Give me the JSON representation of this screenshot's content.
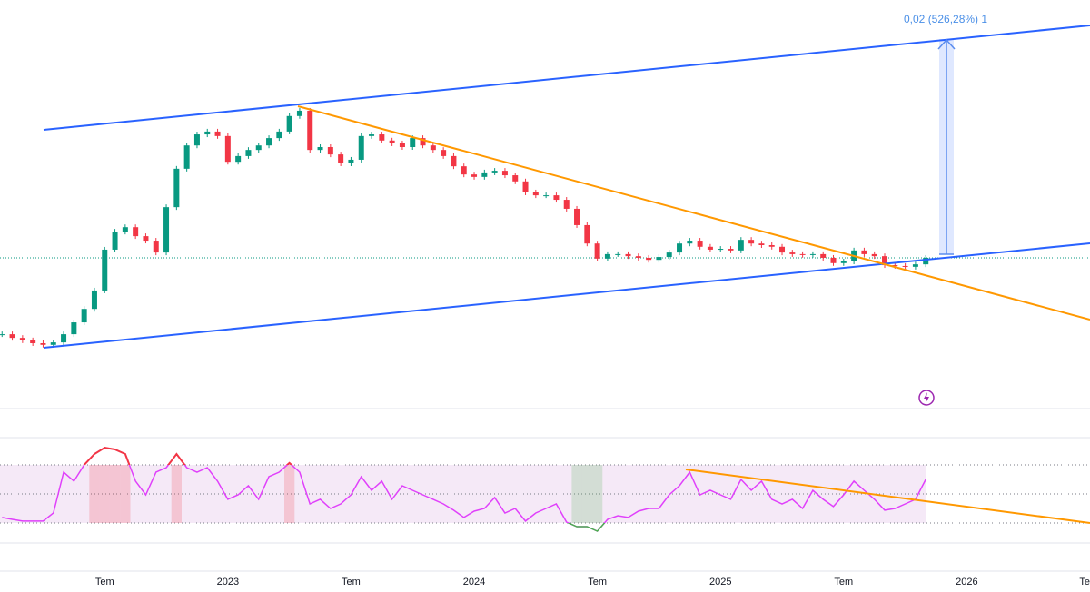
{
  "chart_data": [
    {
      "type": "candlestick",
      "annotation": "0,02 (526,28%) 1",
      "xlim": [
        -11.1,
        42
      ],
      "ylim": [
        0,
        100
      ],
      "xticks": [
        {
          "value": -6,
          "label": "Tem"
        },
        {
          "value": 0,
          "label": "2023"
        },
        {
          "value": 6,
          "label": "Tem"
        },
        {
          "value": 12,
          "label": "2024"
        },
        {
          "value": 18,
          "label": "Tem"
        },
        {
          "value": 24,
          "label": "2025"
        },
        {
          "value": 30,
          "label": "Tem"
        },
        {
          "value": 36,
          "label": "2026"
        },
        {
          "value": 42,
          "label": "Te"
        }
      ],
      "up_color": "#089981",
      "down_color": "#f23645",
      "x": [
        -11,
        -10.5,
        -10,
        -9.5,
        -9,
        -8.5,
        -8,
        -7.5,
        -7,
        -6.5,
        -6,
        -5.5,
        -5,
        -4.5,
        -4,
        -3.5,
        -3,
        -2.5,
        -2,
        -1.5,
        -1,
        -0.5,
        0,
        0.5,
        1,
        1.5,
        2,
        2.5,
        3,
        3.5,
        4,
        4.5,
        5,
        5.5,
        6,
        6.5,
        7,
        7.5,
        8,
        8.5,
        9,
        9.5,
        10,
        10.5,
        11,
        11.5,
        12,
        12.5,
        13,
        13.5,
        14,
        14.5,
        15,
        15.5,
        16,
        16.5,
        17,
        17.5,
        18,
        18.5,
        19,
        19.5,
        20,
        20.5,
        21,
        21.5,
        22,
        22.5,
        23,
        23.5,
        24,
        24.5,
        25,
        25.5,
        26,
        26.5,
        27,
        27.5,
        28,
        28.5,
        29,
        29.5,
        30,
        30.5,
        31,
        31.5,
        32,
        32.5,
        33,
        33.5,
        34
      ],
      "values": [
        18.2,
        17.3,
        16.7,
        16,
        15.6,
        16.2,
        18.2,
        21.1,
        24.4,
        28.9,
        38.9,
        43.3,
        44.4,
        42.2,
        41.1,
        38.2,
        49.3,
        58.7,
        64.4,
        67.1,
        67.8,
        66.7,
        60.4,
        61.8,
        63.3,
        64.4,
        66.2,
        67.8,
        71.6,
        72.9,
        63.3,
        64,
        62.2,
        60,
        60.9,
        66.7,
        67.1,
        65.6,
        64.9,
        64,
        66.2,
        64.4,
        63.3,
        61.8,
        59.3,
        57.3,
        56.7,
        57.8,
        58.2,
        57.1,
        55.6,
        52.9,
        52.2,
        52.2,
        51.1,
        48.9,
        44.9,
        40.4,
        36.7,
        37.8,
        37.8,
        37.3,
        36.9,
        36.4,
        37.1,
        38.2,
        40.4,
        41.1,
        39.6,
        38.9,
        39.1,
        38.7,
        41.3,
        40.4,
        40,
        39.6,
        38.2,
        37.8,
        37.6,
        37.8,
        36.9,
        35.6,
        36,
        38.7,
        37.8,
        37.3,
        35.1,
        34.9,
        34.7,
        35.3,
        36.9
      ]
    },
    {
      "type": "line",
      "xlim": [
        -11.1,
        42
      ],
      "ylim": [
        0,
        100
      ],
      "levels": [
        30,
        50,
        70
      ],
      "color": "#e040fb",
      "overbought_color": "#f23645",
      "oversold_color": "#4caf50",
      "x": [
        -11,
        -10.5,
        -10,
        -9.5,
        -9,
        -8.5,
        -8,
        -7.5,
        -7,
        -6.5,
        -6,
        -5.5,
        -5,
        -4.5,
        -4,
        -3.5,
        -3,
        -2.5,
        -2,
        -1.5,
        -1,
        -0.5,
        0,
        0.5,
        1,
        1.5,
        2,
        2.5,
        3,
        3.5,
        4,
        4.5,
        5,
        5.5,
        6,
        6.5,
        7,
        7.5,
        8,
        8.5,
        9,
        9.5,
        10,
        10.5,
        11,
        11.5,
        12,
        12.5,
        13,
        13.5,
        14,
        14.5,
        15,
        15.5,
        16,
        16.5,
        17,
        17.5,
        18,
        18.5,
        19,
        19.5,
        20,
        20.5,
        21,
        21.5,
        22,
        22.5,
        23,
        23.5,
        24,
        24.5,
        25,
        25.5,
        26,
        26.5,
        27,
        27.5,
        28,
        28.5,
        29,
        29.5,
        30,
        30.5,
        31,
        31.5,
        32,
        32.5,
        33,
        33.5,
        34
      ],
      "values": [
        33.8,
        32.5,
        31.3,
        31.3,
        31.3,
        36.9,
        65,
        58.8,
        70,
        77.5,
        81.9,
        80.6,
        77.5,
        58.8,
        49.4,
        65,
        68.1,
        77.5,
        68.1,
        65,
        68.1,
        58.8,
        46.3,
        49.4,
        55.6,
        46.3,
        61.9,
        65,
        71.3,
        65,
        43.1,
        46.3,
        40,
        43.1,
        49.4,
        61.9,
        52.5,
        58.8,
        46.3,
        55.6,
        52.5,
        49.4,
        46.3,
        43.1,
        38.8,
        33.8,
        38.1,
        40,
        47.5,
        36.9,
        40,
        31.3,
        36.9,
        40,
        43.1,
        30.6,
        27.5,
        27.5,
        24.4,
        32.5,
        35,
        33.8,
        38.1,
        40,
        40,
        49.4,
        55.6,
        65,
        49.4,
        52.5,
        49.4,
        46.3,
        60,
        52.5,
        58.8,
        46.3,
        43.1,
        46.3,
        40,
        52.5,
        46.3,
        41.3,
        49.4,
        58.8,
        52.5,
        46.3,
        38.8,
        40,
        43.1,
        46.3,
        60
      ]
    }
  ]
}
